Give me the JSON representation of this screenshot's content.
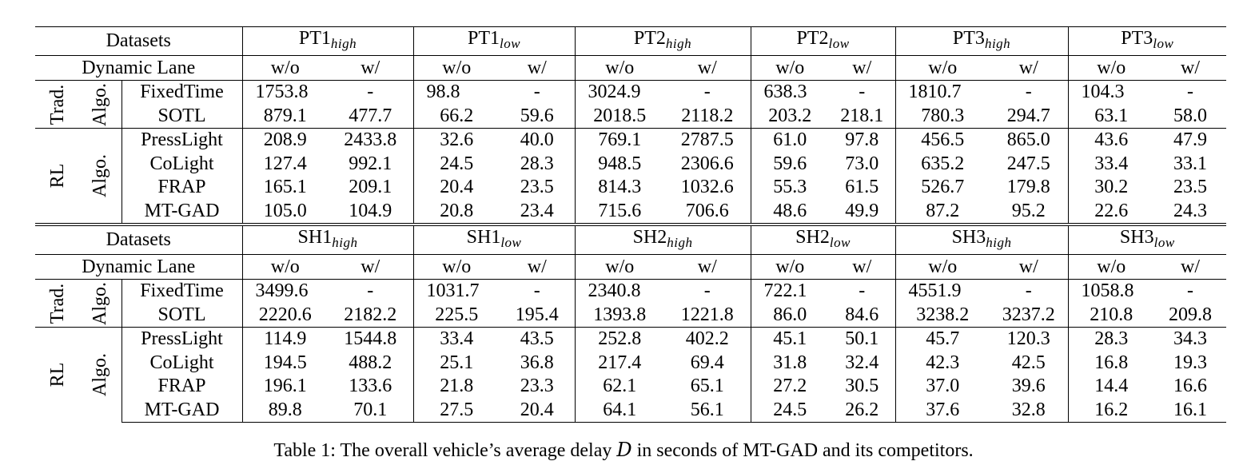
{
  "header_datasets_label": "Datasets",
  "header_dynamic_lane_label": "Dynamic Lane",
  "col_wo": "w/o",
  "col_w": "w/",
  "tables": [
    {
      "datasets": [
        {
          "base": "PT1",
          "sub": "high"
        },
        {
          "base": "PT1",
          "sub": "low"
        },
        {
          "base": "PT2",
          "sub": "high"
        },
        {
          "base": "PT2",
          "sub": "low"
        },
        {
          "base": "PT3",
          "sub": "high"
        },
        {
          "base": "PT3",
          "sub": "low"
        }
      ],
      "groups": [
        {
          "label_a": "Trad.",
          "label_b": "Algo.",
          "rows": [
            {
              "method": "FixedTime",
              "values": [
                "1753.8",
                "-",
                "98.8",
                "-",
                "3024.9",
                "-",
                "638.3",
                "-",
                "1810.7",
                "-",
                "104.3",
                "-"
              ]
            },
            {
              "method": "SOTL",
              "values": [
                "879.1",
                "477.7",
                "66.2",
                "59.6",
                "2018.5",
                "2118.2",
                "203.2",
                "218.1",
                "780.3",
                "294.7",
                "63.1",
                "58.0"
              ]
            }
          ]
        },
        {
          "label_a": "RL",
          "label_b": "Algo.",
          "rows": [
            {
              "method": "PressLight",
              "values": [
                "208.9",
                "2433.8",
                "32.6",
                "40.0",
                "769.1",
                "2787.5",
                "61.0",
                "97.8",
                "456.5",
                "865.0",
                "43.6",
                "47.9"
              ]
            },
            {
              "method": "CoLight",
              "values": [
                "127.4",
                "992.1",
                "24.5",
                "28.3",
                "948.5",
                "2306.6",
                "59.6",
                "73.0",
                "635.2",
                "247.5",
                "33.4",
                "33.1"
              ]
            },
            {
              "method": "FRAP",
              "values": [
                "165.1",
                "209.1",
                "20.4",
                "23.5",
                "814.3",
                "1032.6",
                "55.3",
                "61.5",
                "526.7",
                "179.8",
                "30.2",
                "23.5"
              ]
            },
            {
              "method": "MT-GAD",
              "values": [
                "105.0",
                "104.9",
                "20.8",
                "23.4",
                "715.6",
                "706.6",
                "48.6",
                "49.9",
                "87.2",
                "95.2",
                "22.6",
                "24.3"
              ]
            }
          ]
        }
      ]
    },
    {
      "datasets": [
        {
          "base": "SH1",
          "sub": "high"
        },
        {
          "base": "SH1",
          "sub": "low"
        },
        {
          "base": "SH2",
          "sub": "high"
        },
        {
          "base": "SH2",
          "sub": "low"
        },
        {
          "base": "SH3",
          "sub": "high"
        },
        {
          "base": "SH3",
          "sub": "low"
        }
      ],
      "groups": [
        {
          "label_a": "Trad.",
          "label_b": "Algo.",
          "rows": [
            {
              "method": "FixedTime",
              "values": [
                "3499.6",
                "-",
                "1031.7",
                "-",
                "2340.8",
                "-",
                "722.1",
                "-",
                "4551.9",
                "-",
                "1058.8",
                "-"
              ]
            },
            {
              "method": "SOTL",
              "values": [
                "2220.6",
                "2182.2",
                "225.5",
                "195.4",
                "1393.8",
                "1221.8",
                "86.0",
                "84.6",
                "3238.2",
                "3237.2",
                "210.8",
                "209.8"
              ]
            }
          ]
        },
        {
          "label_a": "RL",
          "label_b": "Algo.",
          "rows": [
            {
              "method": "PressLight",
              "values": [
                "114.9",
                "1544.8",
                "33.4",
                "43.5",
                "252.8",
                "402.2",
                "45.1",
                "50.1",
                "45.7",
                "120.3",
                "28.3",
                "34.3"
              ]
            },
            {
              "method": "CoLight",
              "values": [
                "194.5",
                "488.2",
                "25.1",
                "36.8",
                "217.4",
                "69.4",
                "31.8",
                "32.4",
                "42.3",
                "42.5",
                "16.8",
                "19.3"
              ]
            },
            {
              "method": "FRAP",
              "values": [
                "196.1",
                "133.6",
                "21.8",
                "23.3",
                "62.1",
                "65.1",
                "27.2",
                "30.5",
                "37.0",
                "39.6",
                "14.4",
                "16.6"
              ]
            },
            {
              "method": "MT-GAD",
              "values": [
                "89.8",
                "70.1",
                "27.5",
                "20.4",
                "64.1",
                "56.1",
                "24.5",
                "26.2",
                "37.6",
                "32.8",
                "16.2",
                "16.1"
              ]
            }
          ]
        }
      ]
    }
  ],
  "caption": {
    "prefix": "Table 1: The overall vehicle’s average delay ",
    "symbol": "D",
    "suffix": " in seconds of MT-GAD and its competitors."
  }
}
